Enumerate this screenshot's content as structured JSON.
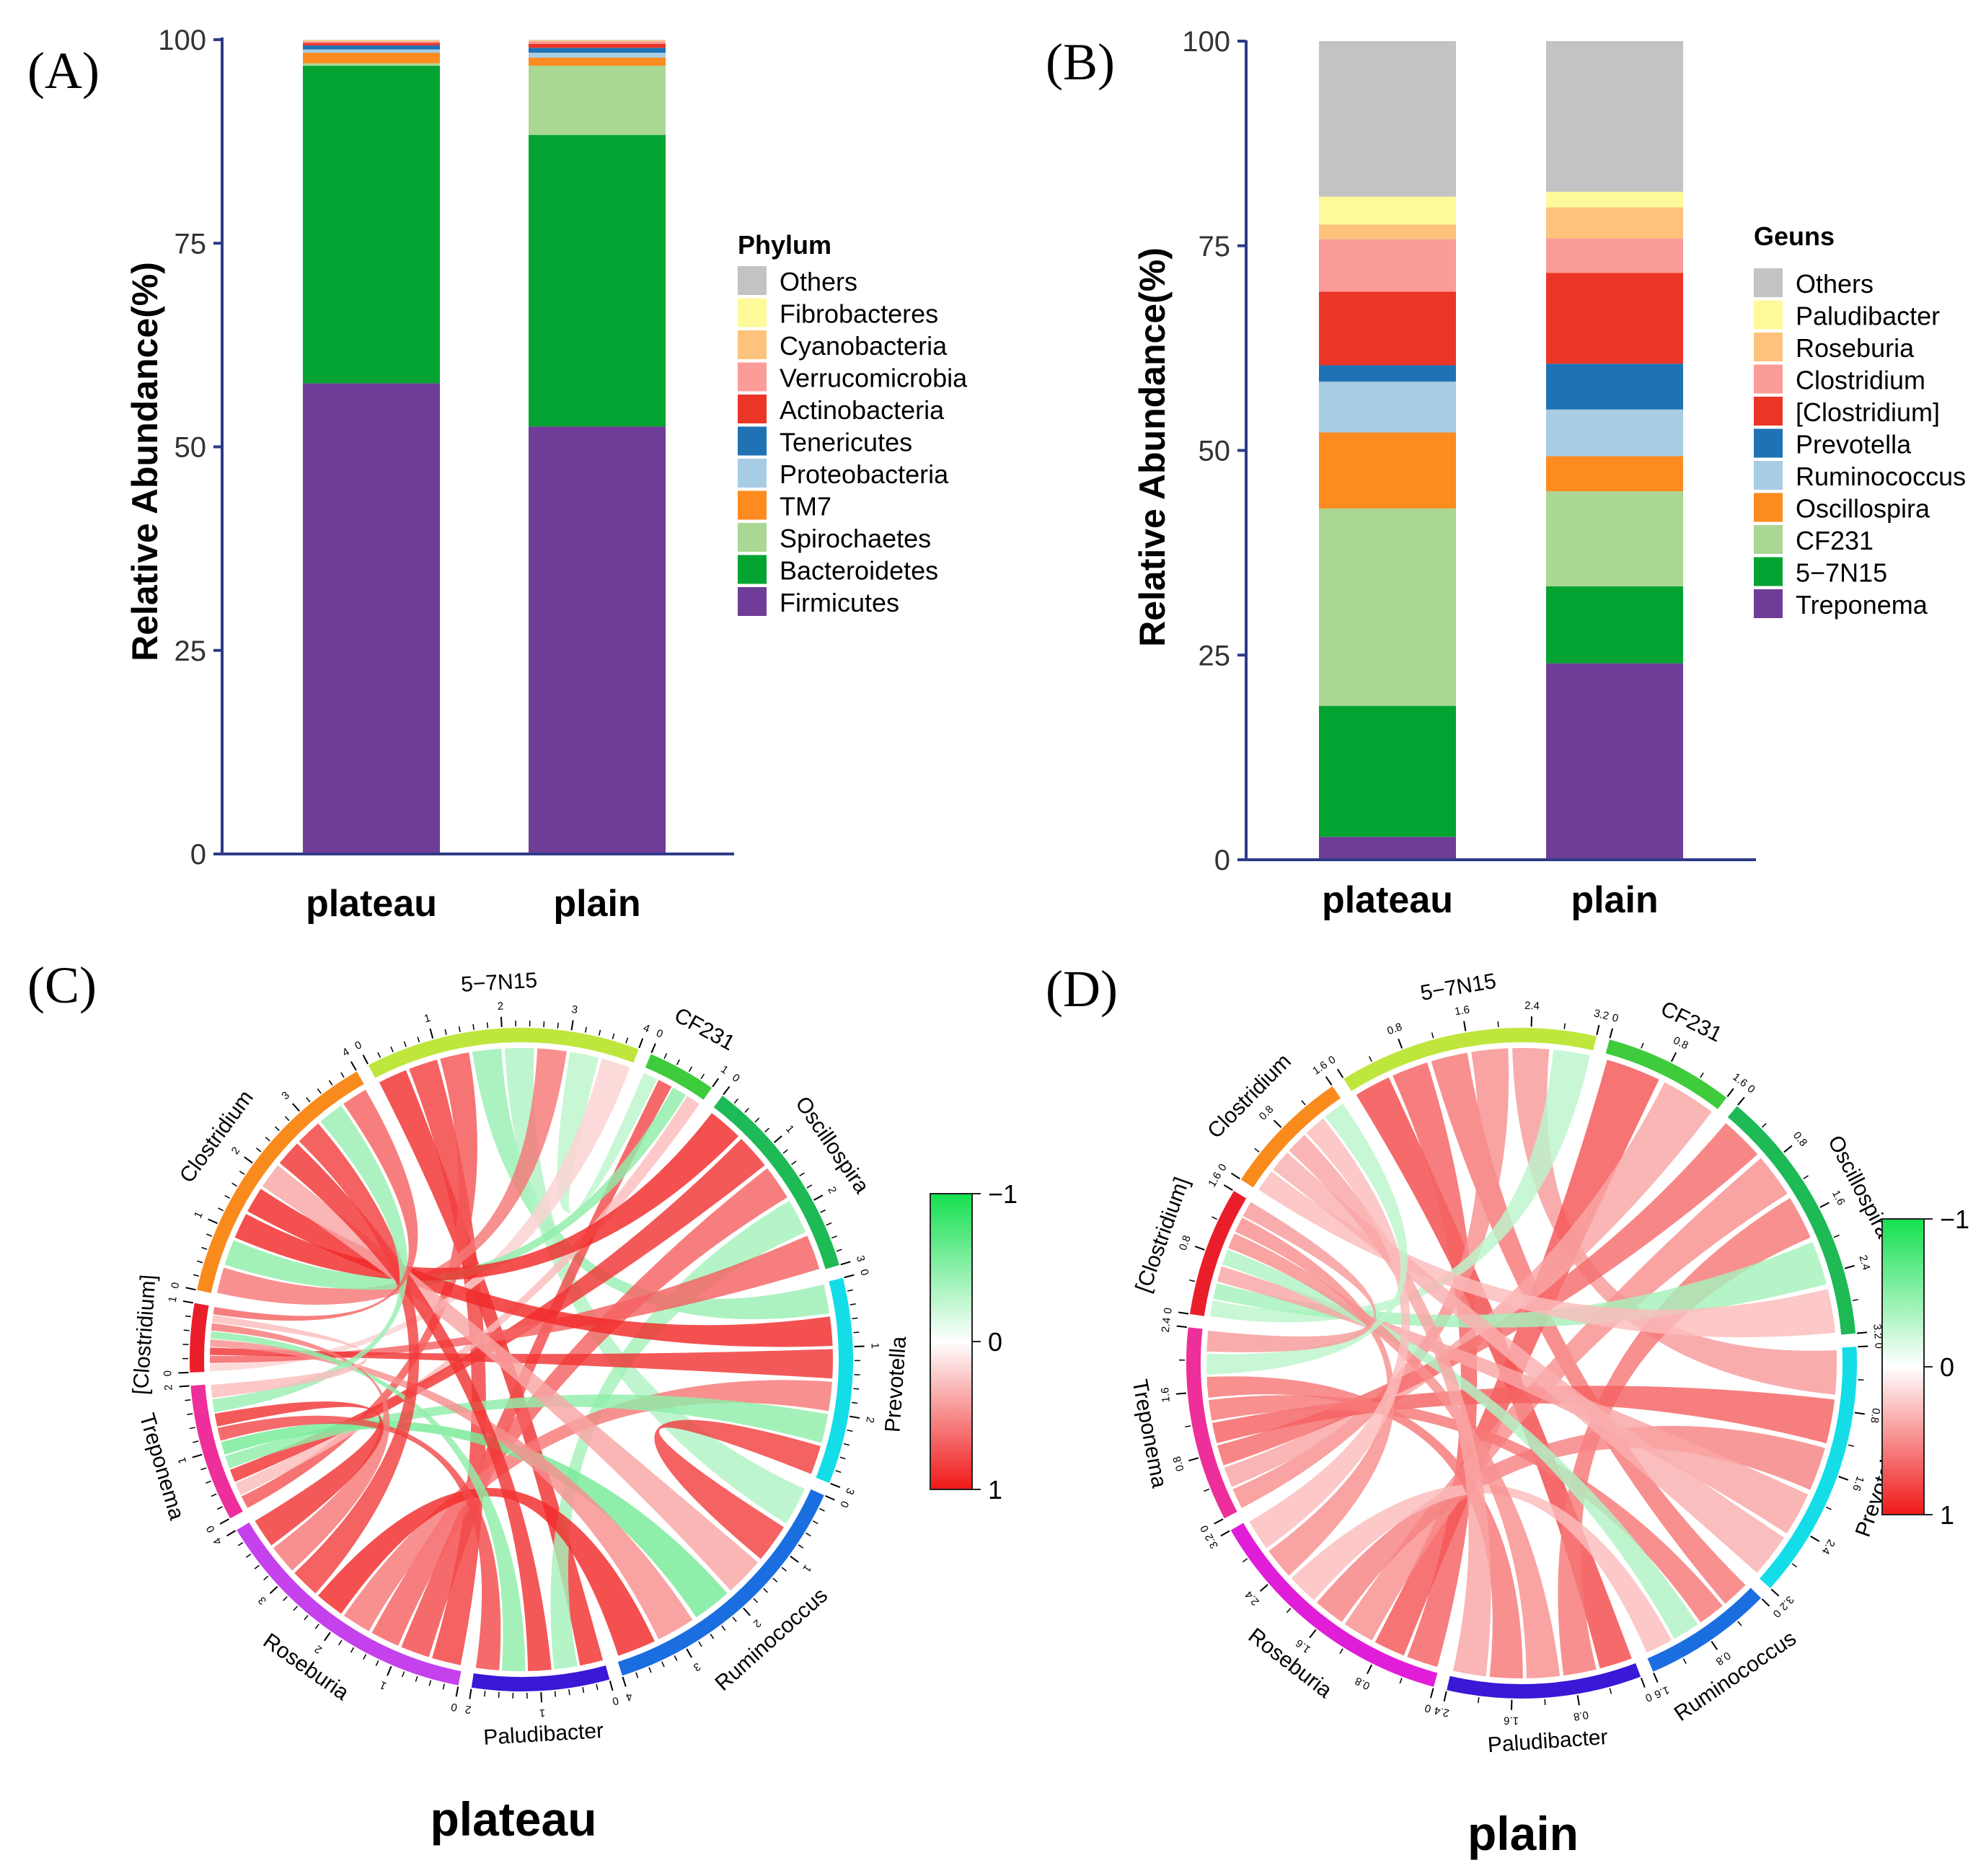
{
  "figure": {
    "panel_labels": [
      "(A)",
      "(B)",
      "(C)",
      "(D)"
    ]
  },
  "chart_data": [
    {
      "type": "bar",
      "stacked": true,
      "panel": "(A)",
      "ylabel": "Relative Abundance(%)",
      "ylim": [
        0,
        100
      ],
      "yticks": [
        "0",
        "25",
        "50",
        "75",
        "100"
      ],
      "categories": [
        "plateau",
        "plain"
      ],
      "legend_title": "Phylum",
      "legend_position": "right",
      "series": [
        {
          "name": "Firmicutes",
          "color": "#6f3d98",
          "values": [
            57.8,
            52.5
          ]
        },
        {
          "name": "Bacteroidetes",
          "color": "#03a332",
          "values": [
            39.0,
            35.8
          ]
        },
        {
          "name": "Spirochaetes",
          "color": "#aad793",
          "values": [
            0.3,
            8.5
          ]
        },
        {
          "name": "TM7",
          "color": "#fd8b1f",
          "values": [
            1.3,
            1.0
          ]
        },
        {
          "name": "Proteobacteria",
          "color": "#a6cde3",
          "values": [
            0.4,
            0.6
          ]
        },
        {
          "name": "Tenericutes",
          "color": "#1f72b3",
          "values": [
            0.5,
            0.6
          ]
        },
        {
          "name": "Actinobacteria",
          "color": "#eb3527",
          "values": [
            0.3,
            0.5
          ]
        },
        {
          "name": "Verrucomicrobia",
          "color": "#fc9c98",
          "values": [
            0.2,
            0.3
          ]
        },
        {
          "name": "Cyanobacteria",
          "color": "#fdc27b",
          "values": [
            0.1,
            0.1
          ]
        },
        {
          "name": "Fibrobacteres",
          "color": "#fefa9a",
          "values": [
            0.05,
            0.05
          ]
        },
        {
          "name": "Others",
          "color": "#c3c3c3",
          "values": [
            0.05,
            0.05
          ]
        }
      ]
    },
    {
      "type": "bar",
      "stacked": true,
      "panel": "(B)",
      "ylabel": "Relative Abundance(%)",
      "ylim": [
        0,
        100
      ],
      "yticks": [
        "0",
        "25",
        "50",
        "75",
        "100"
      ],
      "categories": [
        "plateau",
        "plain"
      ],
      "legend_title": "Geuns",
      "legend_position": "right",
      "series": [
        {
          "name": "Treponema",
          "color": "#6f3d98",
          "values": [
            2.8,
            24.0
          ]
        },
        {
          "name": "5−7N15",
          "color": "#03a332",
          "values": [
            16.0,
            9.4
          ]
        },
        {
          "name": "CF231",
          "color": "#aad793",
          "values": [
            24.1,
            11.6
          ]
        },
        {
          "name": "Oscillospira",
          "color": "#fd8b1f",
          "values": [
            9.3,
            4.3
          ]
        },
        {
          "name": "Ruminococcus",
          "color": "#a6cde3",
          "values": [
            6.2,
            5.7
          ]
        },
        {
          "name": "Prevotella",
          "color": "#1f72b3",
          "values": [
            2.0,
            5.6
          ]
        },
        {
          "name": "[Clostridium]",
          "color": "#eb3527",
          "values": [
            9.0,
            11.1
          ]
        },
        {
          "name": "Clostridium",
          "color": "#fc9c98",
          "values": [
            6.4,
            4.2
          ]
        },
        {
          "name": "Roseburia",
          "color": "#fdc27b",
          "values": [
            1.8,
            3.8
          ]
        },
        {
          "name": "Paludibacter",
          "color": "#fefa9a",
          "values": [
            3.4,
            1.9
          ]
        },
        {
          "name": "Others",
          "color": "#c3c3c3",
          "values": [
            19.0,
            18.4
          ]
        }
      ]
    },
    {
      "type": "chord",
      "panel": "(C)",
      "title": "plateau",
      "colorbar": {
        "labels": [
          "−1",
          "0",
          "1"
        ],
        "colors": [
          "#14e050",
          "#ffffff",
          "#f01818"
        ]
      },
      "sectors": [
        {
          "name": "5−7N15",
          "max": 4,
          "ticks": [
            "0",
            "1",
            "2",
            "3",
            "4"
          ],
          "color": "#bfe63c"
        },
        {
          "name": "CF231",
          "max": 1,
          "ticks": [
            "0",
            "1"
          ],
          "color": "#3ecb3c"
        },
        {
          "name": "Oscillospira",
          "max": 3,
          "ticks": [
            "0",
            "1",
            "2",
            "3"
          ],
          "color": "#1dba55"
        },
        {
          "name": "Prevotella",
          "max": 3,
          "ticks": [
            "0",
            "1",
            "2",
            "3"
          ],
          "color": "#15dde8"
        },
        {
          "name": "Ruminococcus",
          "max": 4,
          "ticks": [
            "0",
            "1",
            "2",
            "3",
            "4"
          ],
          "color": "#1b6ee0"
        },
        {
          "name": "Paludibacter",
          "max": 2,
          "ticks": [
            "0",
            "1",
            "2"
          ],
          "color": "#3b17d6"
        },
        {
          "name": "Roseburia",
          "max": 4,
          "ticks": [
            "0",
            "1",
            "2",
            "3",
            "4"
          ],
          "color": "#c441ec"
        },
        {
          "name": "Treponema",
          "max": 2,
          "ticks": [
            "0",
            "1",
            "2"
          ],
          "color": "#ee2e9b"
        },
        {
          "name": "[Clostridium]",
          "max": 1,
          "ticks": [
            "0",
            "1"
          ],
          "color": "#ea1e2a"
        },
        {
          "name": "Clostridium",
          "max": 4,
          "ticks": [
            "0",
            "1",
            "2",
            "3",
            "4"
          ],
          "color": "#f98a1c"
        }
      ],
      "links": [
        [
          0,
          5,
          0.92
        ],
        [
          0,
          6,
          0.85
        ],
        [
          0,
          7,
          0.75
        ],
        [
          0,
          3,
          -0.45
        ],
        [
          0,
          4,
          -0.35
        ],
        [
          0,
          9,
          0.6
        ],
        [
          0,
          1,
          -0.3
        ],
        [
          0,
          8,
          0.2
        ],
        [
          1,
          6,
          0.8
        ],
        [
          1,
          9,
          -0.5
        ],
        [
          1,
          7,
          0.3
        ],
        [
          2,
          9,
          0.95
        ],
        [
          2,
          7,
          0.9
        ],
        [
          2,
          6,
          0.7
        ],
        [
          2,
          5,
          -0.4
        ],
        [
          2,
          8,
          0.7
        ],
        [
          3,
          9,
          0.95
        ],
        [
          3,
          8,
          0.9
        ],
        [
          3,
          6,
          0.6
        ],
        [
          3,
          7,
          -0.5
        ],
        [
          3,
          4,
          0.85
        ],
        [
          4,
          9,
          0.4
        ],
        [
          4,
          7,
          -0.6
        ],
        [
          4,
          8,
          0.5
        ],
        [
          4,
          6,
          0.95
        ],
        [
          5,
          9,
          0.9
        ],
        [
          5,
          8,
          -0.5
        ],
        [
          5,
          7,
          0.8
        ],
        [
          6,
          9,
          0.85
        ],
        [
          6,
          8,
          0.6
        ],
        [
          6,
          7,
          0.9
        ],
        [
          7,
          9,
          -0.45
        ],
        [
          7,
          8,
          0.3
        ],
        [
          8,
          9,
          0.7
        ]
      ]
    },
    {
      "type": "chord",
      "panel": "(D)",
      "title": "plain",
      "colorbar": {
        "labels": [
          "−1",
          "0",
          "1"
        ],
        "colors": [
          "#14e050",
          "#ffffff",
          "#f01818"
        ]
      },
      "sectors": [
        {
          "name": "5−7N15",
          "max": 3.2,
          "ticks": [
            "0",
            "0.8",
            "1.6",
            "2.4",
            "3.2"
          ],
          "color": "#bfe63c"
        },
        {
          "name": "CF231",
          "max": 1.6,
          "ticks": [
            "0",
            "0.8",
            "1.6"
          ],
          "color": "#3ecb3c"
        },
        {
          "name": "Oscillospira",
          "max": 3.2,
          "ticks": [
            "0",
            "0.8",
            "1.6",
            "2.4",
            "3.2"
          ],
          "color": "#1dba55"
        },
        {
          "name": "Prevotella",
          "max": 3.2,
          "ticks": [
            "0",
            "0.8",
            "1.6",
            "2.4",
            "3.2"
          ],
          "color": "#15dde8"
        },
        {
          "name": "Ruminococcus",
          "max": 1.6,
          "ticks": [
            "0",
            "0.8",
            "1.6"
          ],
          "color": "#1b6ee0"
        },
        {
          "name": "Paludibacter",
          "max": 2.4,
          "ticks": [
            "0",
            "0.8",
            "1.6",
            "2.4"
          ],
          "color": "#3b17d6"
        },
        {
          "name": "Roseburia",
          "max": 3.2,
          "ticks": [
            "0",
            "0.8",
            "1.6",
            "2.4",
            "3.2"
          ],
          "color": "#e01ed8"
        },
        {
          "name": "Treponema",
          "max": 2.4,
          "ticks": [
            "0",
            "0.8",
            "1.6",
            "2.4"
          ],
          "color": "#ee2e9b"
        },
        {
          "name": "[Clostridium]",
          "max": 1.6,
          "ticks": [
            "0",
            "0.8",
            "1.6"
          ],
          "color": "#ea1e2a"
        },
        {
          "name": "Clostridium",
          "max": 1.6,
          "ticks": [
            "0",
            "0.8",
            "1.6"
          ],
          "color": "#f98a1c"
        }
      ],
      "links": [
        [
          0,
          5,
          0.8
        ],
        [
          0,
          6,
          0.7
        ],
        [
          0,
          4,
          0.6
        ],
        [
          0,
          7,
          0.5
        ],
        [
          0,
          3,
          0.45
        ],
        [
          0,
          8,
          -0.3
        ],
        [
          1,
          6,
          0.75
        ],
        [
          1,
          7,
          0.4
        ],
        [
          2,
          7,
          0.65
        ],
        [
          2,
          6,
          0.5
        ],
        [
          2,
          5,
          0.6
        ],
        [
          2,
          8,
          -0.4
        ],
        [
          2,
          9,
          0.3
        ],
        [
          3,
          7,
          0.7
        ],
        [
          3,
          6,
          0.55
        ],
        [
          3,
          8,
          0.4
        ],
        [
          3,
          9,
          0.35
        ],
        [
          4,
          7,
          0.6
        ],
        [
          4,
          8,
          -0.35
        ],
        [
          4,
          6,
          0.3
        ],
        [
          5,
          8,
          0.5
        ],
        [
          5,
          7,
          0.6
        ],
        [
          5,
          9,
          0.4
        ],
        [
          6,
          8,
          0.5
        ],
        [
          6,
          9,
          0.3
        ],
        [
          7,
          9,
          -0.3
        ],
        [
          7,
          8,
          0.45
        ]
      ]
    }
  ]
}
